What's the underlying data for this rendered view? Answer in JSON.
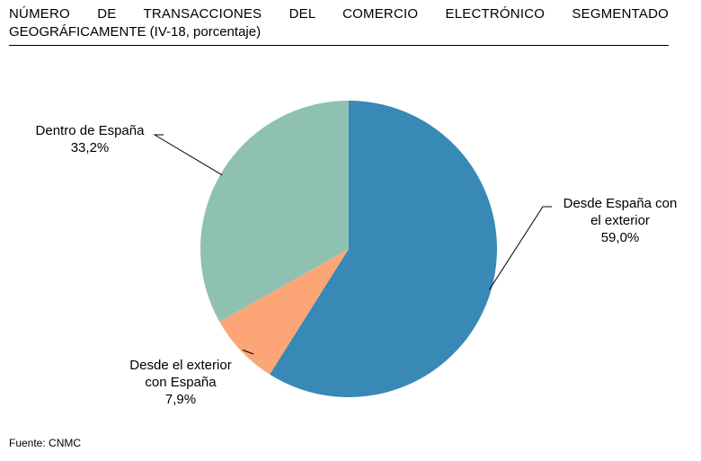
{
  "title": {
    "line1": "NÚMERO DE TRANSACCIONES DEL COMERCIO ELECTRÓNICO SEGMENTADO",
    "line2": "GEOGRÁFICAMENTE (IV-18, porcentaje)"
  },
  "source": "Fuente: CNMC",
  "chart_data": {
    "type": "pie",
    "title": "NÚMERO DE TRANSACCIONES DEL COMERCIO ELECTRÓNICO SEGMENTADO GEOGRÁFICAMENTE (IV-18, porcentaje)",
    "slices": [
      {
        "label_lines": [
          "Desde España con",
          "el exterior"
        ],
        "value": 59.0,
        "value_label": "59,0%",
        "color": "#3889b5"
      },
      {
        "label_lines": [
          "Desde el exterior",
          "con España"
        ],
        "value": 7.9,
        "value_label": "7,9%",
        "color": "#fca677"
      },
      {
        "label_lines": [
          "Dentro de España"
        ],
        "value": 33.2,
        "value_label": "33,2%",
        "color": "#8fc1b3"
      }
    ],
    "start_angle": "12 o'clock",
    "direction": "clockwise",
    "legend": "none"
  }
}
